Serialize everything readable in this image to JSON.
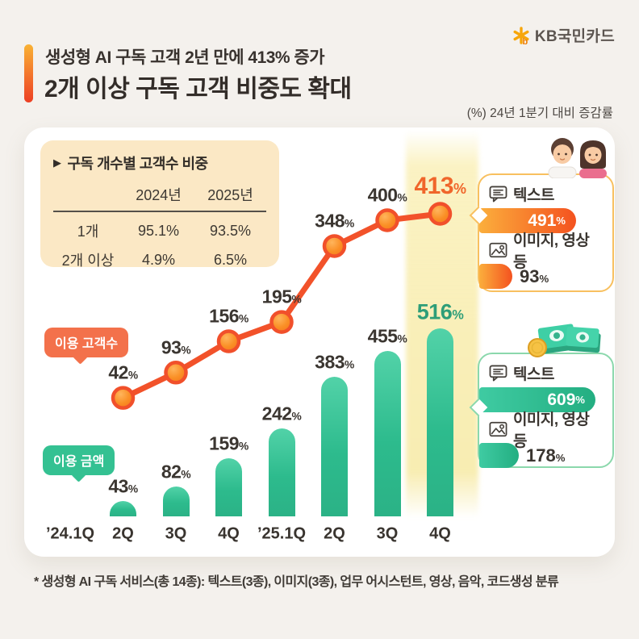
{
  "brand": {
    "name": "KB국민카드"
  },
  "header": {
    "title_line1": "생성형 AI 구독 고객 2년 만에 413% 증가",
    "title_line2": "2개 이상 구독 고객 비중도 확대",
    "note": "(%) 24년 1분기 대비 증감률"
  },
  "table": {
    "marker": "▶",
    "title": "구독 개수별 고객수 비중",
    "col_headers": [
      "2024년",
      "2025년"
    ],
    "rows": [
      {
        "label": "1개",
        "y2024": "95.1%",
        "y2025": "93.5%"
      },
      {
        "label": "2개 이상",
        "y2024": "4.9%",
        "y2025": "6.5%"
      }
    ]
  },
  "chart_data": {
    "type": "combo (line + bar)",
    "unit": "%",
    "baseline_note": "(%) 24년 1분기 대비 증감률",
    "categories": [
      "’24.1Q",
      "2Q",
      "3Q",
      "4Q",
      "’25.1Q",
      "2Q",
      "3Q",
      "4Q"
    ],
    "series": [
      {
        "name": "이용 고객수",
        "type": "line",
        "color": "#F2522A",
        "values": [
          null,
          42,
          93,
          156,
          195,
          348,
          400,
          413
        ]
      },
      {
        "name": "이용 금액",
        "type": "bar",
        "color": "#35C193",
        "values": [
          null,
          43,
          82,
          159,
          242,
          383,
          455,
          516
        ]
      }
    ],
    "highlighted_category_index": 7,
    "highlight_values": {
      "line": "413%",
      "bar": "516%"
    },
    "legend_position": "left-inline-bubbles",
    "grid": false
  },
  "callouts": {
    "customers": {
      "rows": [
        {
          "label": "텍스트",
          "value": "491",
          "unit": "%"
        },
        {
          "label": "이미지, 영상 등",
          "value": "93",
          "unit": "%"
        }
      ]
    },
    "amount": {
      "rows": [
        {
          "label": "텍스트",
          "value": "609",
          "unit": "%"
        },
        {
          "label": "이미지, 영상 등",
          "value": "178",
          "unit": "%"
        }
      ]
    }
  },
  "footnote": "* 생성형 AI 구독 서비스(총 14종): 텍스트(3종), 이미지(3종), 업무 어시스턴트, 영상, 음악, 코드생성 분류"
}
